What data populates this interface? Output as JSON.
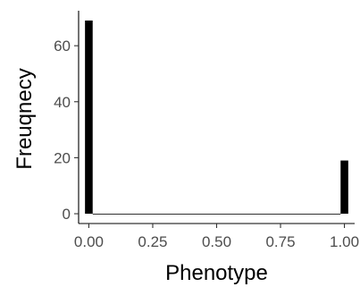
{
  "chart_data": {
    "type": "bar",
    "subtype": "histogram",
    "xlabel": "Phenotype",
    "ylabel": "Freuqnecy",
    "xlim": [
      -0.04,
      1.04
    ],
    "ylim": [
      -3.5,
      72.5
    ],
    "x_ticks": [
      {
        "value": 0.0,
        "label": "0.00"
      },
      {
        "value": 0.25,
        "label": "0.25"
      },
      {
        "value": 0.5,
        "label": "0.50"
      },
      {
        "value": 0.75,
        "label": "0.75"
      },
      {
        "value": 1.0,
        "label": "1.00"
      }
    ],
    "y_ticks": [
      {
        "value": 0,
        "label": "0"
      },
      {
        "value": 20,
        "label": "20"
      },
      {
        "value": 40,
        "label": "40"
      },
      {
        "value": 60,
        "label": "60"
      }
    ],
    "bins": [
      {
        "x_start": -0.015,
        "x_end": 0.015,
        "count": 69
      },
      {
        "x_start": 0.015,
        "x_end": 0.985,
        "count": 0
      },
      {
        "x_start": 0.985,
        "x_end": 1.015,
        "count": 19
      }
    ],
    "bar_color": "#000000",
    "grid": false
  }
}
